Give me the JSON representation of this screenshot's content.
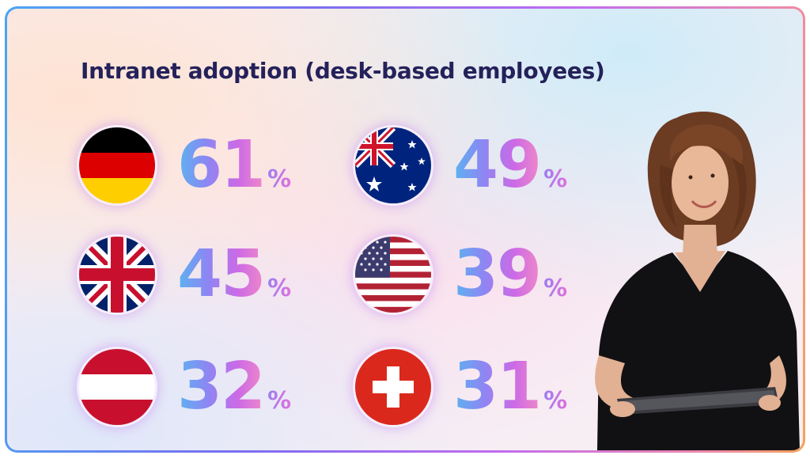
{
  "title": "Intranet adoption (desk-based employees)",
  "percent_sign": "%",
  "colors": {
    "title": "#24215a",
    "gradient_start": "#5bb3f0",
    "gradient_mid": "#cc6ae6",
    "gradient_end": "#f088c8"
  },
  "stats": [
    {
      "country": "Germany",
      "flag_icon": "germany-flag-icon",
      "value": "61"
    },
    {
      "country": "Australia",
      "flag_icon": "australia-flag-icon",
      "value": "49"
    },
    {
      "country": "United Kingdom",
      "flag_icon": "uk-flag-icon",
      "value": "45"
    },
    {
      "country": "United States",
      "flag_icon": "usa-flag-icon",
      "value": "39"
    },
    {
      "country": "Austria",
      "flag_icon": "austria-flag-icon",
      "value": "32"
    },
    {
      "country": "Switzerland",
      "flag_icon": "switzerland-flag-icon",
      "value": "31"
    }
  ],
  "image": {
    "subject": "smiling woman holding a tablet"
  }
}
